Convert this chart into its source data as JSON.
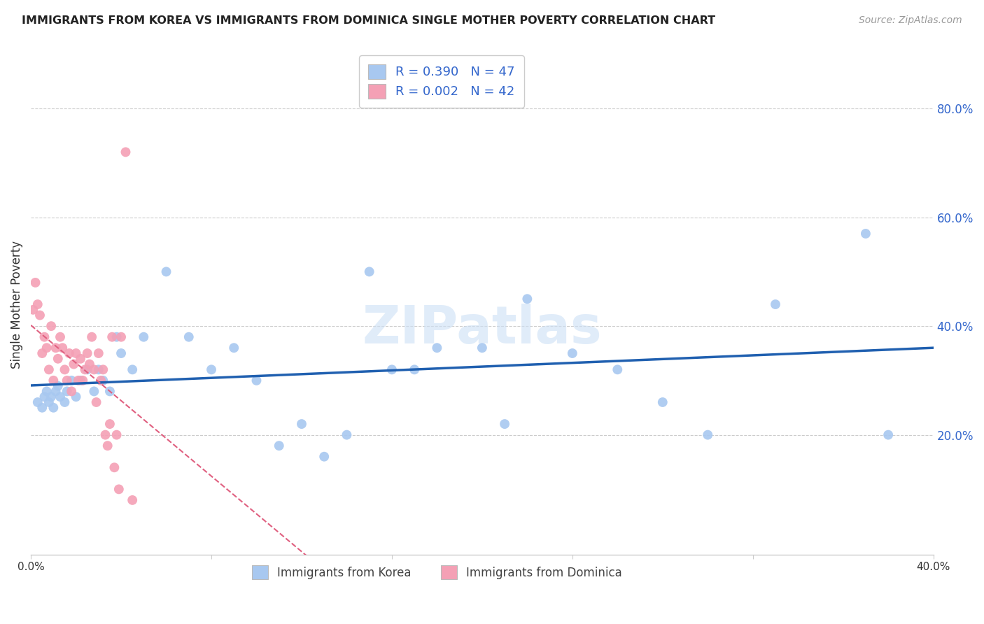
{
  "title": "IMMIGRANTS FROM KOREA VS IMMIGRANTS FROM DOMINICA SINGLE MOTHER POVERTY CORRELATION CHART",
  "source": "Source: ZipAtlas.com",
  "ylabel": "Single Mother Poverty",
  "xlim": [
    0.0,
    0.4
  ],
  "ylim": [
    -0.02,
    0.9
  ],
  "yticks": [
    0.2,
    0.4,
    0.6,
    0.8
  ],
  "ytick_labels": [
    "20.0%",
    "40.0%",
    "60.0%",
    "80.0%"
  ],
  "xticks": [
    0.0,
    0.08,
    0.16,
    0.24,
    0.32,
    0.4
  ],
  "xtick_labels": [
    "0.0%",
    "",
    "",
    "",
    "",
    "40.0%"
  ],
  "korea_R": 0.39,
  "korea_N": 47,
  "dominica_R": 0.002,
  "dominica_N": 42,
  "korea_color": "#a8c8f0",
  "dominica_color": "#f4a0b5",
  "korea_line_color": "#2060b0",
  "dominica_line_color": "#e06080",
  "legend_text_color": "#3366cc",
  "watermark": "ZIPatlas",
  "background_color": "#ffffff",
  "korea_x": [
    0.003,
    0.005,
    0.006,
    0.007,
    0.008,
    0.009,
    0.01,
    0.011,
    0.012,
    0.013,
    0.015,
    0.016,
    0.018,
    0.02,
    0.022,
    0.025,
    0.028,
    0.03,
    0.032,
    0.035,
    0.038,
    0.04,
    0.045,
    0.05,
    0.06,
    0.07,
    0.08,
    0.09,
    0.1,
    0.11,
    0.12,
    0.13,
    0.14,
    0.15,
    0.16,
    0.17,
    0.18,
    0.2,
    0.21,
    0.22,
    0.24,
    0.26,
    0.28,
    0.3,
    0.33,
    0.37,
    0.38
  ],
  "korea_y": [
    0.26,
    0.25,
    0.27,
    0.28,
    0.26,
    0.27,
    0.25,
    0.28,
    0.29,
    0.27,
    0.26,
    0.28,
    0.3,
    0.27,
    0.3,
    0.32,
    0.28,
    0.32,
    0.3,
    0.28,
    0.38,
    0.35,
    0.32,
    0.38,
    0.5,
    0.38,
    0.32,
    0.36,
    0.3,
    0.18,
    0.22,
    0.16,
    0.2,
    0.5,
    0.32,
    0.32,
    0.36,
    0.36,
    0.22,
    0.45,
    0.35,
    0.32,
    0.26,
    0.2,
    0.44,
    0.57,
    0.2
  ],
  "dominica_x": [
    0.001,
    0.002,
    0.003,
    0.004,
    0.005,
    0.006,
    0.007,
    0.008,
    0.009,
    0.01,
    0.011,
    0.012,
    0.013,
    0.014,
    0.015,
    0.016,
    0.017,
    0.018,
    0.019,
    0.02,
    0.021,
    0.022,
    0.023,
    0.024,
    0.025,
    0.026,
    0.027,
    0.028,
    0.029,
    0.03,
    0.031,
    0.032,
    0.033,
    0.034,
    0.035,
    0.036,
    0.037,
    0.038,
    0.039,
    0.04,
    0.042,
    0.045
  ],
  "dominica_y": [
    0.43,
    0.48,
    0.44,
    0.42,
    0.35,
    0.38,
    0.36,
    0.32,
    0.4,
    0.3,
    0.36,
    0.34,
    0.38,
    0.36,
    0.32,
    0.3,
    0.35,
    0.28,
    0.33,
    0.35,
    0.3,
    0.34,
    0.3,
    0.32,
    0.35,
    0.33,
    0.38,
    0.32,
    0.26,
    0.35,
    0.3,
    0.32,
    0.2,
    0.18,
    0.22,
    0.38,
    0.14,
    0.2,
    0.1,
    0.38,
    0.72,
    0.08
  ]
}
